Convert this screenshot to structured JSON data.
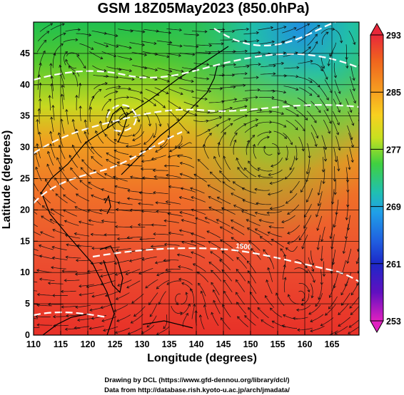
{
  "title": "GSM 18Z05May2023 (850.0hPa)",
  "x_axis": {
    "label": "Longitude (degrees)",
    "ticks": [
      "110",
      "115",
      "120",
      "125",
      "130",
      "135",
      "140",
      "145",
      "150",
      "155",
      "160",
      "165"
    ]
  },
  "y_axis": {
    "label": "Latitude (degrees)",
    "ticks": [
      "0",
      "5",
      "10",
      "15",
      "20",
      "25",
      "30",
      "35",
      "40",
      "45"
    ]
  },
  "colorbar": {
    "ticks": [
      "293",
      "285",
      "277",
      "269",
      "261",
      "253"
    ],
    "colors": [
      "#e8283a",
      "#f0641e",
      "#f6a020",
      "#f8d020",
      "#c8e020",
      "#60d030",
      "#20c060",
      "#20c0b0",
      "#20a0e8",
      "#2060e0",
      "#1c28c8",
      "#6010c0",
      "#c010b8",
      "#e020c0"
    ]
  },
  "credits": {
    "line1": "Drawing by DCL (https://www.gfd-dennou.org/library/dcl/)",
    "line2": "Data from http://database.rish.kyoto-u.ac.jp/arch/jmadata/"
  },
  "map_labels": {
    "contour_label": "1500"
  },
  "chart_data": {
    "type": "heatmap",
    "variable": "temperature at 850 hPa (K) with wind streamlines",
    "xlim": [
      110,
      170
    ],
    "ylim": [
      0,
      50
    ],
    "color_range": [
      253,
      293
    ],
    "temperature_samples": [
      {
        "lon": 112,
        "lat": 47,
        "value": 277
      },
      {
        "lon": 125,
        "lat": 47,
        "value": 276
      },
      {
        "lon": 140,
        "lat": 47,
        "value": 271
      },
      {
        "lon": 150,
        "lat": 47,
        "value": 266
      },
      {
        "lon": 160,
        "lat": 47,
        "value": 267
      },
      {
        "lon": 120,
        "lat": 40,
        "value": 280
      },
      {
        "lon": 145,
        "lat": 40,
        "value": 277
      },
      {
        "lon": 165,
        "lat": 40,
        "value": 276
      },
      {
        "lon": 115,
        "lat": 30,
        "value": 287
      },
      {
        "lon": 140,
        "lat": 30,
        "value": 283
      },
      {
        "lon": 160,
        "lat": 30,
        "value": 280
      },
      {
        "lon": 115,
        "lat": 20,
        "value": 290
      },
      {
        "lon": 140,
        "lat": 20,
        "value": 288
      },
      {
        "lon": 165,
        "lat": 20,
        "value": 287
      },
      {
        "lon": 120,
        "lat": 5,
        "value": 292
      },
      {
        "lon": 150,
        "lat": 5,
        "value": 292
      }
    ],
    "grid": true
  }
}
